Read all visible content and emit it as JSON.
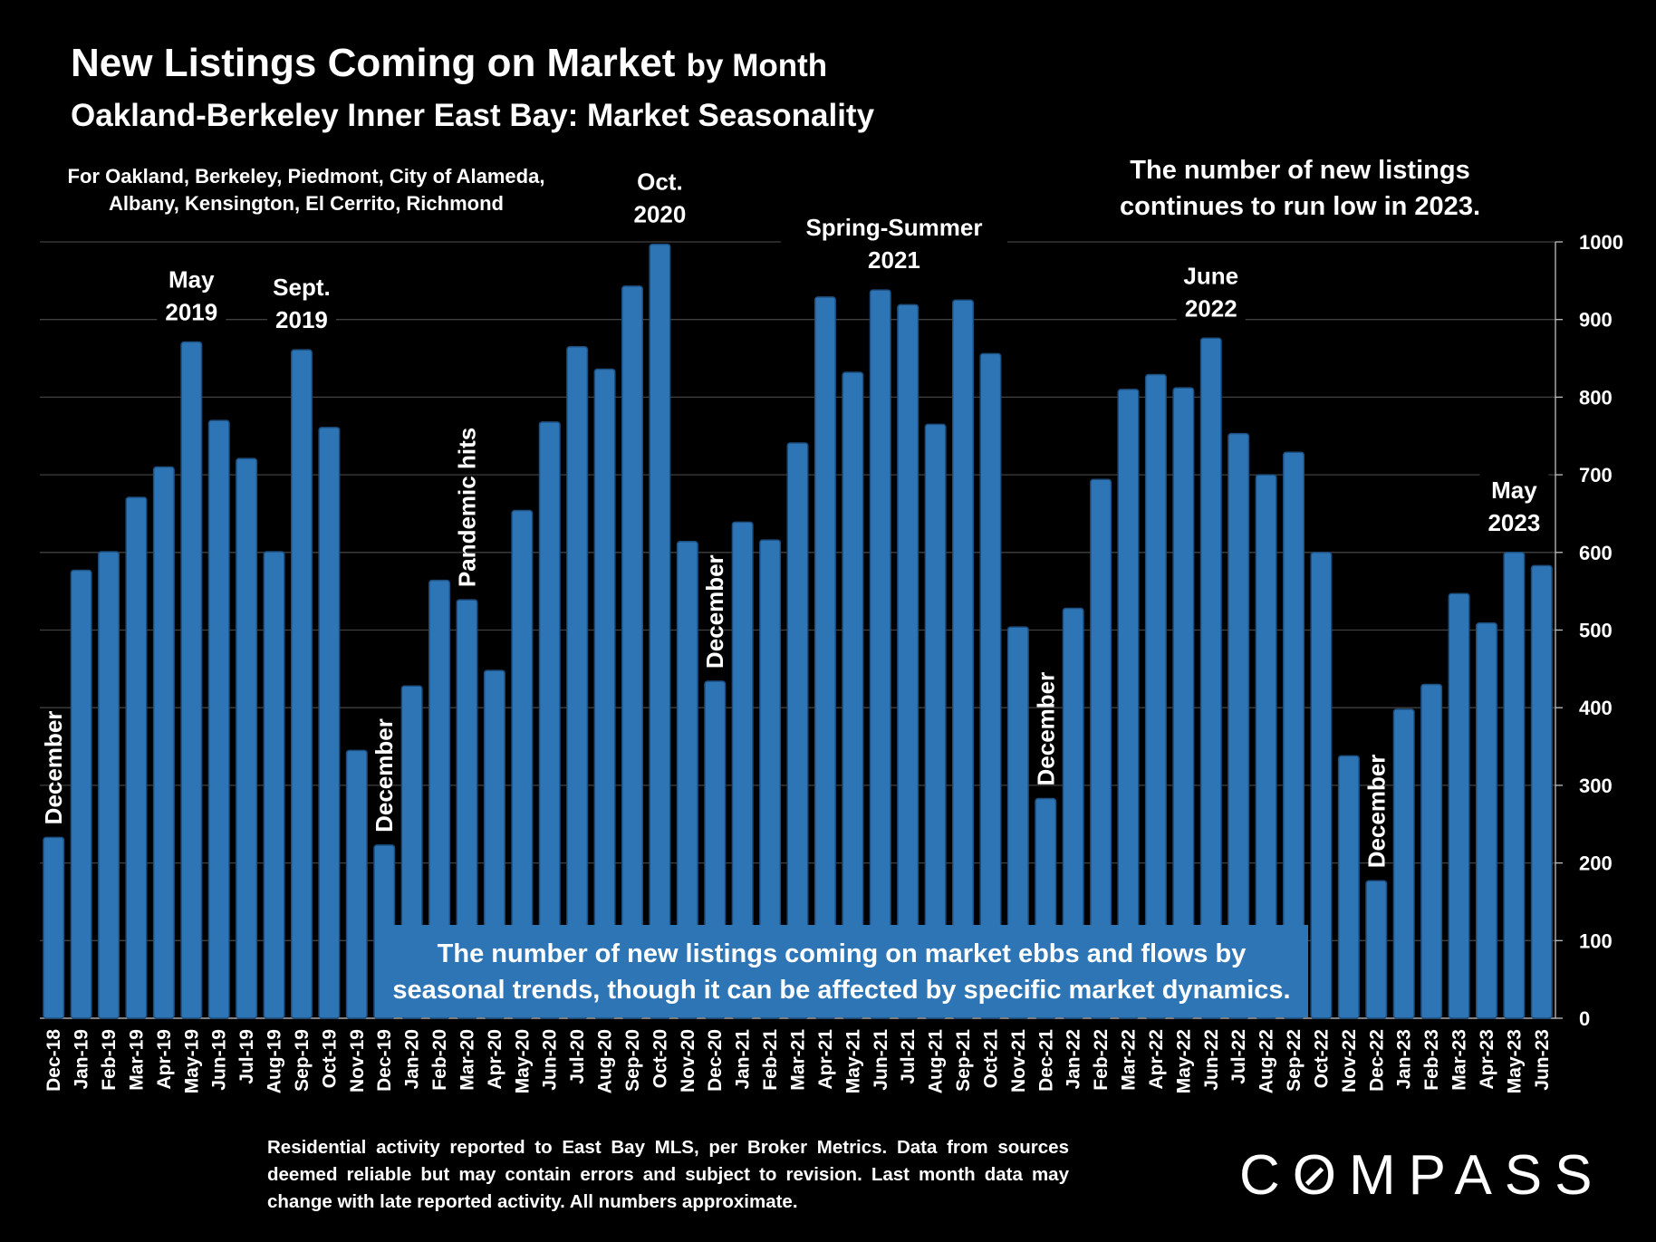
{
  "header": {
    "title_main": "New Listings Coming on Market",
    "title_suffix": "by Month",
    "subtitle": "Oakland-Berkeley Inner East Bay: Market Seasonality",
    "coverage": "For Oakland, Berkeley, Piedmont, City of Alameda, Albany, Kensington, El Cerrito, Richmond",
    "top_note": "The number of new listings continues to run low in 2023."
  },
  "footer": {
    "disclaimer": "Residential activity reported to East Bay MLS, per Broker Metrics. Data from sources deemed reliable but may contain errors and subject to revision. Last month data may change with late reported activity. All numbers approximate.",
    "logo": "COMPASS"
  },
  "colors": {
    "bar": "#2e75b6",
    "bar_dark": "#1d4e7e",
    "grid": "#404040",
    "background": "#000000",
    "box": "#2e75b6"
  },
  "chart_data": {
    "type": "bar",
    "categories": [
      "Dec-18",
      "Jan-19",
      "Feb-19",
      "Mar-19",
      "Apr-19",
      "May-19",
      "Jun-19",
      "Jul-19",
      "Aug-19",
      "Sep-19",
      "Oct-19",
      "Nov-19",
      "Dec-19",
      "Jan-20",
      "Feb-20",
      "Mar-20",
      "Apr-20",
      "May-20",
      "Jun-20",
      "Jul-20",
      "Aug-20",
      "Sep-20",
      "Oct-20",
      "Nov-20",
      "Dec-20",
      "Jan-21",
      "Feb-21",
      "Mar-21",
      "Apr-21",
      "May-21",
      "Jun-21",
      "Jul-21",
      "Aug-21",
      "Sep-21",
      "Oct-21",
      "Nov-21",
      "Dec-21",
      "Jan-22",
      "Feb-22",
      "Mar-22",
      "Apr-22",
      "May-22",
      "Jun-22",
      "Jul-22",
      "Aug-22",
      "Sep-22",
      "Oct-22",
      "Nov-22",
      "Dec-22",
      "Jan-23",
      "Feb-23",
      "Mar-23",
      "Apr-23",
      "May-23",
      "Jun-23"
    ],
    "values": [
      233,
      577,
      601,
      671,
      710,
      871,
      770,
      721,
      601,
      861,
      761,
      345,
      223,
      428,
      564,
      539,
      448,
      654,
      768,
      865,
      836,
      943,
      997,
      614,
      434,
      639,
      616,
      741,
      929,
      832,
      938,
      919,
      765,
      925,
      856,
      504,
      283,
      528,
      694,
      810,
      829,
      812,
      876,
      753,
      700,
      729,
      600,
      338,
      177,
      398,
      430,
      547,
      509,
      600,
      583
    ],
    "ylim": [
      0,
      1000
    ],
    "yticks": [
      0,
      100,
      200,
      300,
      400,
      500,
      600,
      700,
      800,
      900,
      1000
    ],
    "grid": true,
    "legend": "none",
    "box_note": "The number of new listings coming on market ebbs and flows by seasonal trends, though it can be affected by specific market dynamics.",
    "annotations": [
      {
        "index": 0,
        "text": "December",
        "orientation": "vertical"
      },
      {
        "index": 5,
        "text": "May 2019",
        "lines": [
          "May",
          "2019"
        ]
      },
      {
        "index": 9,
        "text": "Sept. 2019",
        "lines": [
          "Sept.",
          "2019"
        ]
      },
      {
        "index": 12,
        "text": "December",
        "orientation": "vertical"
      },
      {
        "index": 15,
        "text": "Pandemic hits",
        "orientation": "vertical"
      },
      {
        "index": 22,
        "text": "Oct. 2020",
        "lines": [
          "Oct.",
          "2020"
        ]
      },
      {
        "index": 24,
        "text": "December",
        "orientation": "vertical"
      },
      {
        "index": 30.5,
        "text": "Spring-Summer 2021",
        "lines": [
          "Spring-Summer",
          "2021"
        ]
      },
      {
        "index": 36,
        "text": "December",
        "orientation": "vertical"
      },
      {
        "index": 42,
        "text": "June 2022",
        "lines": [
          "June",
          "2022"
        ]
      },
      {
        "index": 48,
        "text": "December",
        "orientation": "vertical"
      },
      {
        "index": 53,
        "text": "May 2023",
        "lines": [
          "May",
          "2023"
        ]
      }
    ]
  }
}
